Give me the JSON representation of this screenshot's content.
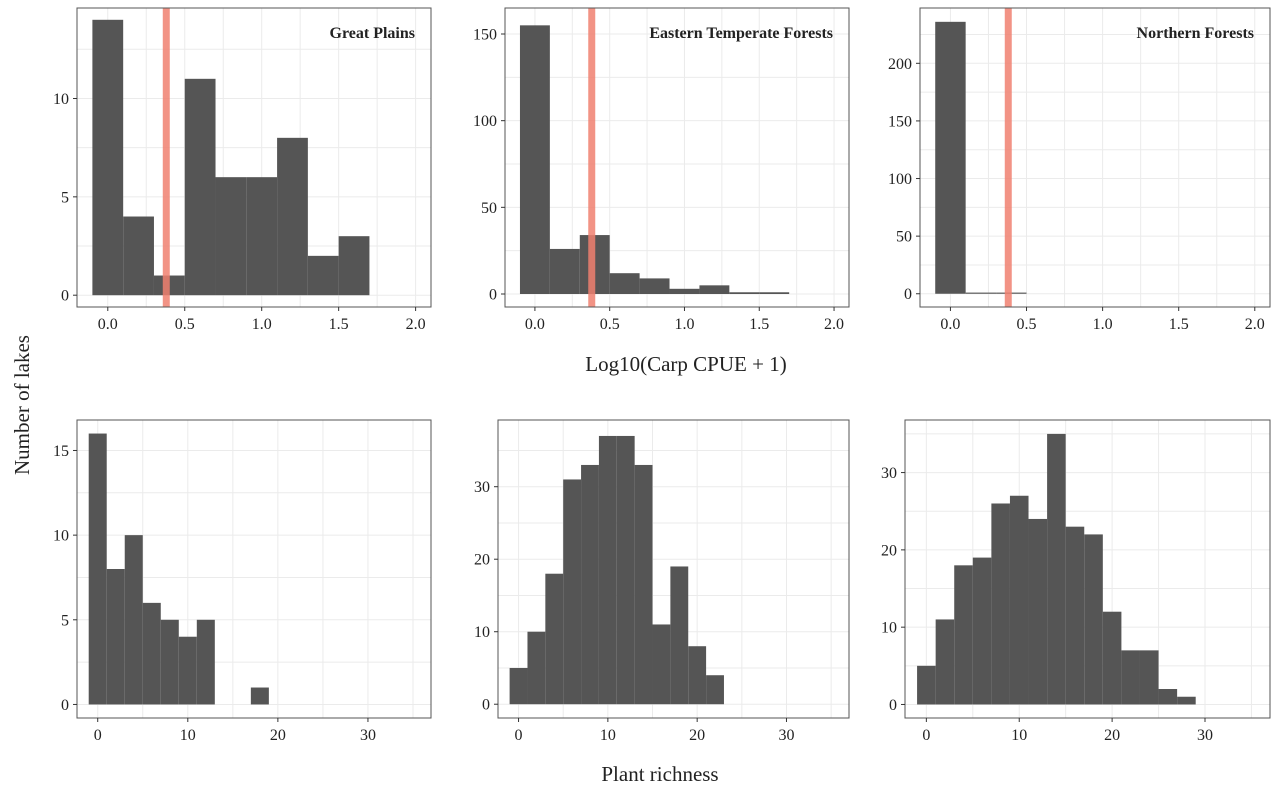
{
  "figure": {
    "ylabel": "Number of lakes",
    "row1_xlabel": "Log10(Carp CPUE + 1)",
    "row2_xlabel": "Plant richness"
  },
  "colors": {
    "bar": "#555555",
    "threshold": "#F08070",
    "grid": "#EBEBEB",
    "frame": "#555555"
  },
  "chart_data": [
    {
      "type": "bar",
      "title": "Great Plains",
      "xlabel": "",
      "ylabel": "",
      "xlim": [
        -0.2,
        2.1
      ],
      "ylim": [
        -0.6,
        14.6
      ],
      "xticks": [
        0.0,
        0.5,
        1.0,
        1.5,
        2.0
      ],
      "xtick_labels": [
        "0.0",
        "0.5",
        "1.0",
        "1.5",
        "2.0"
      ],
      "yticks": [
        0,
        5,
        10
      ],
      "ytick_labels": [
        "0",
        "5",
        "10"
      ],
      "bin_width": 0.2,
      "bin_centers": [
        0.0,
        0.2,
        0.4,
        0.6,
        0.8,
        1.0,
        1.2,
        1.4,
        1.6
      ],
      "values": [
        14,
        4,
        1,
        11,
        6,
        6,
        8,
        2,
        3
      ],
      "threshold": 0.38,
      "grid": true,
      "title_position": "top-right"
    },
    {
      "type": "bar",
      "title": "Eastern Temperate Forests",
      "xlabel": "",
      "ylabel": "",
      "xlim": [
        -0.2,
        2.1
      ],
      "ylim": [
        -7.5,
        165
      ],
      "xticks": [
        0.0,
        0.5,
        1.0,
        1.5,
        2.0
      ],
      "xtick_labels": [
        "0.0",
        "0.5",
        "1.0",
        "1.5",
        "2.0"
      ],
      "yticks": [
        0,
        50,
        100,
        150
      ],
      "ytick_labels": [
        "0",
        "50",
        "100",
        "150"
      ],
      "bin_width": 0.2,
      "bin_centers": [
        0.0,
        0.2,
        0.4,
        0.6,
        0.8,
        1.0,
        1.2,
        1.4,
        1.6
      ],
      "values": [
        155,
        26,
        34,
        12,
        9,
        3,
        5,
        1,
        1
      ],
      "threshold": 0.38,
      "grid": true,
      "title_position": "top-right"
    },
    {
      "type": "bar",
      "title": "Northern Forests",
      "xlabel": "",
      "ylabel": "",
      "xlim": [
        -0.2,
        2.1
      ],
      "ylim": [
        -11.5,
        248
      ],
      "xticks": [
        0.0,
        0.5,
        1.0,
        1.5,
        2.0
      ],
      "xtick_labels": [
        "0.0",
        "0.5",
        "1.0",
        "1.5",
        "2.0"
      ],
      "yticks": [
        0,
        50,
        100,
        150,
        200
      ],
      "ytick_labels": [
        "0",
        "50",
        "100",
        "150",
        "200"
      ],
      "bin_width": 0.2,
      "bin_centers": [
        0.0,
        0.2,
        0.4
      ],
      "values": [
        236,
        1,
        1
      ],
      "threshold": 0.38,
      "grid": true,
      "title_position": "top-right"
    },
    {
      "type": "bar",
      "title": "",
      "xlabel": "",
      "ylabel": "",
      "xlim": [
        -2.3,
        37
      ],
      "ylim": [
        -0.8,
        16.8
      ],
      "xticks": [
        0,
        10,
        20,
        30
      ],
      "xtick_labels": [
        "0",
        "10",
        "20",
        "30"
      ],
      "yticks": [
        0,
        5,
        10,
        15
      ],
      "ytick_labels": [
        "0",
        "5",
        "10",
        "15"
      ],
      "bin_width": 2,
      "bin_centers": [
        0,
        2,
        4,
        6,
        8,
        10,
        12,
        14,
        16,
        18
      ],
      "values": [
        16,
        8,
        10,
        6,
        5,
        4,
        5,
        0,
        0,
        1
      ],
      "grid": true
    },
    {
      "type": "bar",
      "title": "",
      "xlabel": "",
      "ylabel": "",
      "xlim": [
        -2.3,
        37
      ],
      "ylim": [
        -1.9,
        39.2
      ],
      "xticks": [
        0,
        10,
        20,
        30
      ],
      "xtick_labels": [
        "0",
        "10",
        "20",
        "30"
      ],
      "yticks": [
        0,
        10,
        20,
        30
      ],
      "ytick_labels": [
        "0",
        "10",
        "20",
        "30"
      ],
      "bin_width": 2,
      "bin_centers": [
        0,
        2,
        4,
        6,
        8,
        10,
        12,
        14,
        16,
        18,
        20,
        22
      ],
      "values": [
        5,
        10,
        18,
        31,
        33,
        37,
        37,
        33,
        11,
        19,
        8,
        4
      ],
      "grid": true
    },
    {
      "type": "bar",
      "title": "",
      "xlabel": "",
      "ylabel": "",
      "xlim": [
        -2.3,
        37
      ],
      "ylim": [
        -1.75,
        36.8
      ],
      "xticks": [
        0,
        10,
        20,
        30
      ],
      "xtick_labels": [
        "0",
        "10",
        "20",
        "30"
      ],
      "yticks": [
        0,
        10,
        20,
        30
      ],
      "ytick_labels": [
        "0",
        "10",
        "20",
        "30"
      ],
      "bin_width": 2,
      "bin_centers": [
        0,
        2,
        4,
        6,
        8,
        10,
        12,
        14,
        16,
        18,
        20,
        22,
        24,
        26,
        28
      ],
      "values": [
        5,
        11,
        18,
        19,
        26,
        27,
        24,
        35,
        23,
        22,
        12,
        7,
        7,
        2,
        1
      ],
      "grid": true
    }
  ]
}
